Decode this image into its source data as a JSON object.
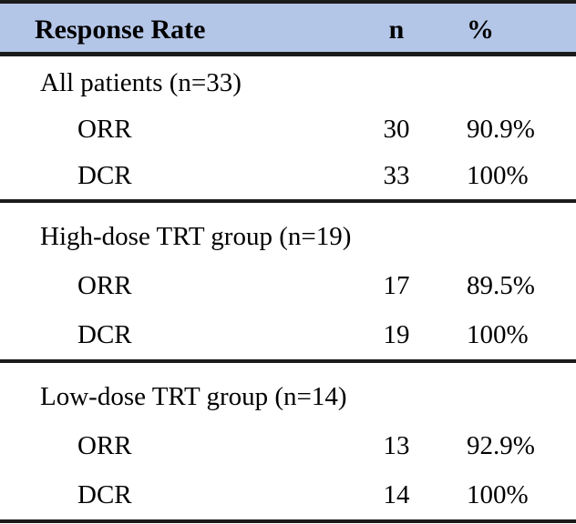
{
  "table": {
    "header": {
      "col_label": "Response Rate",
      "col_n": "n",
      "col_pct": "%"
    },
    "sections": [
      {
        "title": "All patients (n=33)",
        "rows": [
          {
            "label": "ORR",
            "n": "30",
            "pct": "90.9%"
          },
          {
            "label": "DCR",
            "n": "33",
            "pct": "100%"
          }
        ]
      },
      {
        "title": "High-dose TRT group (n=19)",
        "rows": [
          {
            "label": "ORR",
            "n": "17",
            "pct": "89.5%"
          },
          {
            "label": "DCR",
            "n": "19",
            "pct": "100%"
          }
        ]
      },
      {
        "title": "Low-dose TRT group (n=14)",
        "rows": [
          {
            "label": "ORR",
            "n": "13",
            "pct": "92.9%"
          },
          {
            "label": "DCR",
            "n": "14",
            "pct": "100%"
          }
        ]
      }
    ],
    "colors": {
      "header_bg": "#b4c6e7",
      "border": "#1b1b1b",
      "text": "#000000"
    }
  }
}
